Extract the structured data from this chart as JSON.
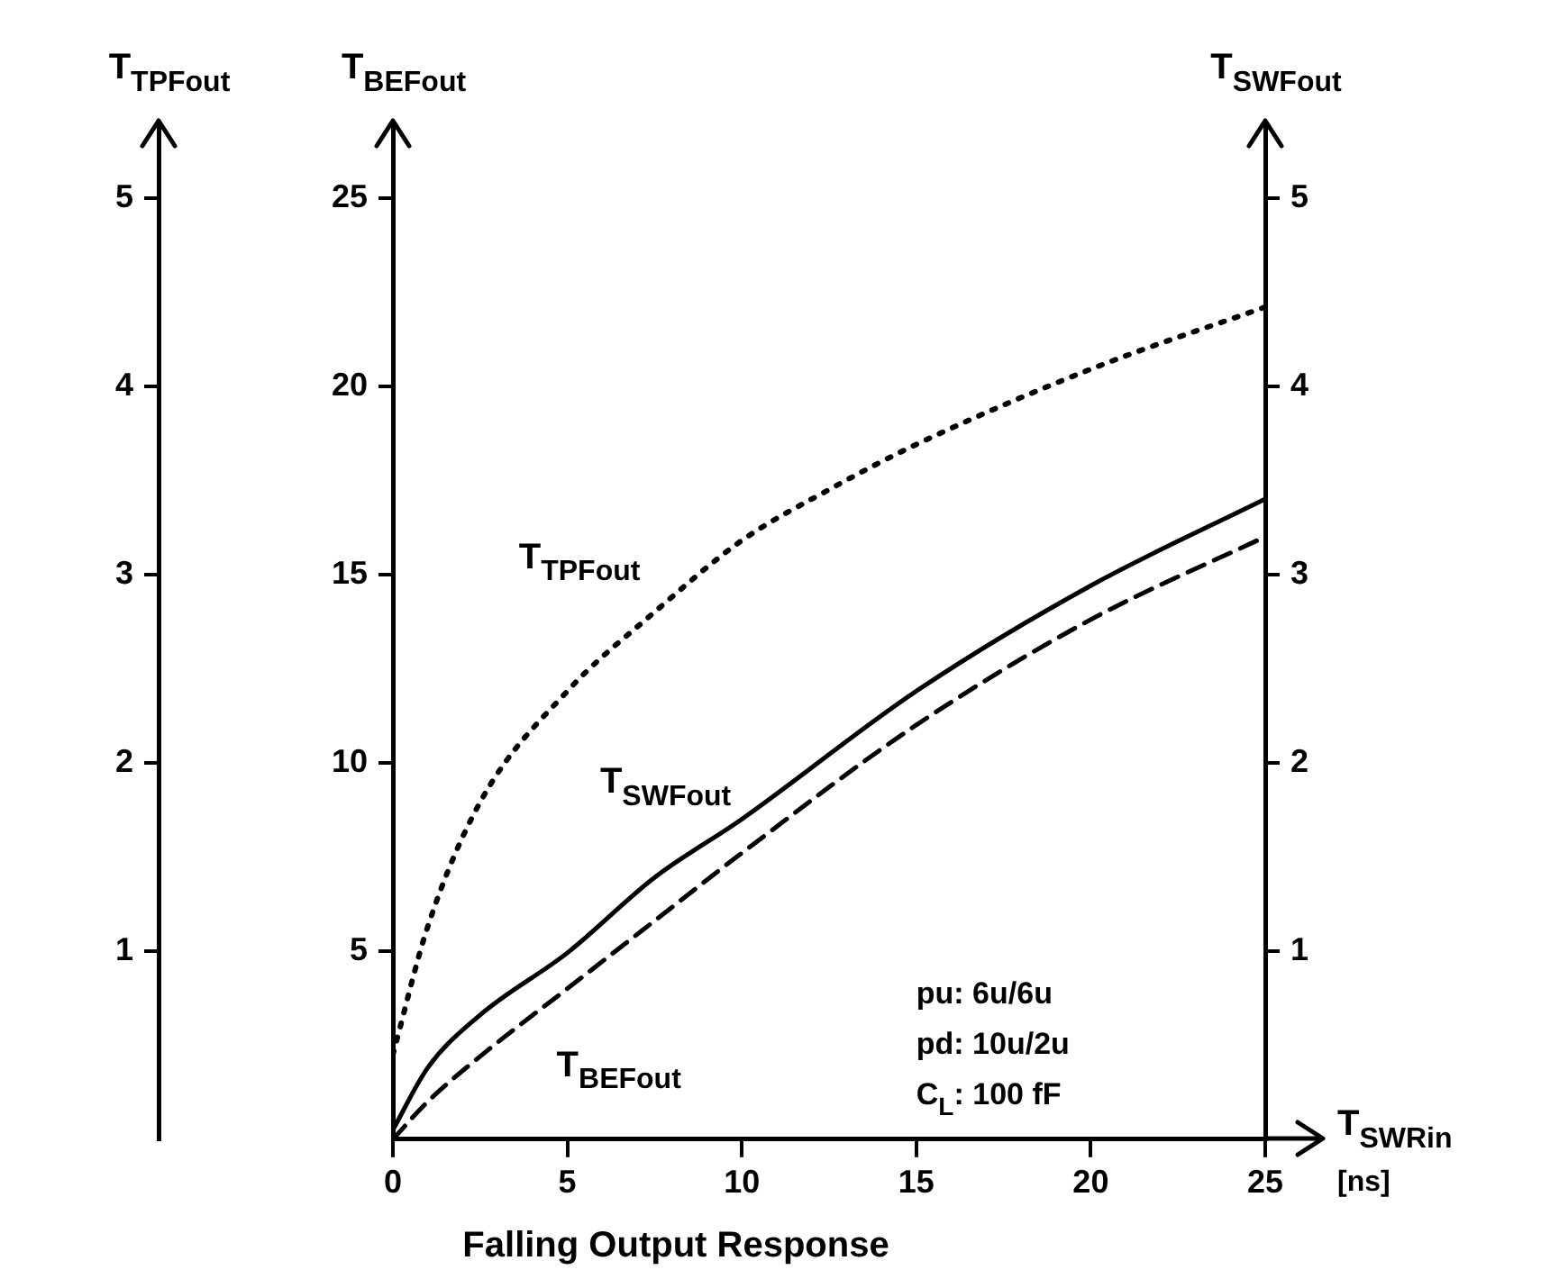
{
  "chart_data": {
    "type": "line",
    "title": "Falling Output Response",
    "xlabel": "T$_{SWRin}$ [ns]",
    "ylabel": "T$_{BEFout}$",
    "y2label": "T$_{SWFout}$",
    "y3label": "T$_{TPFout}$",
    "xlim": [
      0,
      25
    ],
    "xticks": [
      0,
      5,
      10,
      15,
      20,
      25
    ],
    "ylim": [
      0,
      27
    ],
    "yticks": [
      5,
      10,
      15,
      20,
      25
    ],
    "y2lim": [
      0,
      5.4
    ],
    "y2ticks": [
      1,
      2,
      3,
      4,
      5
    ],
    "y3lim": [
      0,
      5.4
    ],
    "y3ticks": [
      1,
      2,
      3,
      4,
      5
    ],
    "grid": false,
    "legend": false,
    "marker": "none",
    "series": [
      {
        "name": "T$_{TPFout}$",
        "color": "#000000",
        "axis": "y3",
        "line_style": "dotted",
        "x": [
          0,
          1,
          2.5,
          5,
          7.5,
          10,
          12.5,
          15,
          20,
          25
        ],
        "values": [
          0.45,
          1.13,
          1.79,
          2.38,
          2.8,
          3.18,
          3.45,
          3.69,
          4.09,
          4.42
        ]
      },
      {
        "name": "T$_{SWFout}$",
        "color": "#000000",
        "axis": "y2",
        "line_style": "solid",
        "x": [
          0,
          1,
          2.5,
          5,
          7.5,
          10,
          15,
          20,
          25
        ],
        "values": [
          0.05,
          0.38,
          0.66,
          0.99,
          1.39,
          1.7,
          2.38,
          2.94,
          3.4
        ]
      },
      {
        "name": "T$_{BEFout}$",
        "color": "#000000",
        "axis": "y",
        "line_style": "dashed",
        "x": [
          0,
          1,
          2.5,
          5,
          7.5,
          10,
          15,
          20,
          25
        ],
        "values": [
          0,
          1.0,
          2.2,
          4.0,
          5.8,
          7.6,
          11.0,
          13.8,
          16.0
        ]
      }
    ],
    "annotations": [
      "pu: 6u/6u",
      "pd: 10u/2u",
      "C$_{L}$: 100 fF"
    ]
  }
}
